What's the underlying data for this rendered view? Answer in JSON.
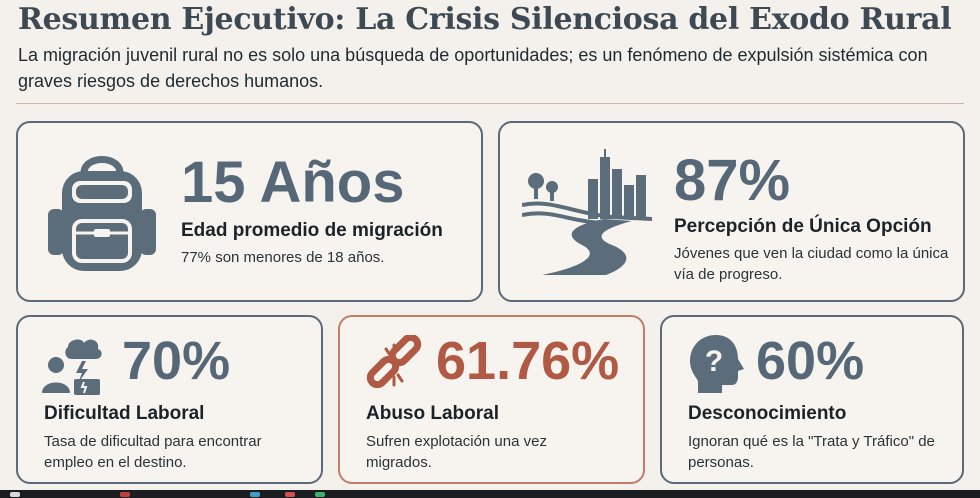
{
  "header": {
    "title": "Resumen Ejecutivo: La Crisis Silenciosa del Exodo Rural",
    "subtitle": "La migración juvenil rural no es solo una búsqueda de oportunidades; es un fenómeno de expulsión sistémica con graves riesgos de derechos humanos."
  },
  "cards": {
    "age": {
      "value": "15 Años",
      "label": "Edad promedio de migración",
      "desc": "77% son menores de 18 años.",
      "icon": "backpack-icon"
    },
    "option": {
      "value": "87%",
      "label": "Percepción de Única Opción",
      "desc": "Jóvenes que ven la ciudad como la única vía de progreso.",
      "icon": "city-road-icon"
    },
    "work": {
      "value": "70%",
      "label": "Dificultad Laboral",
      "desc": "Tasa de dificultad para encontrar empleo en el destino.",
      "icon": "worker-storm-icon"
    },
    "abuse": {
      "value": "61.76%",
      "label": "Abuso Laboral",
      "desc": "Sufren explotación una vez migrados.",
      "icon": "broken-chain-icon"
    },
    "unaware": {
      "value": "60%",
      "label": "Desconocimiento",
      "desc": "Ignoran qué es la \"Trata y Tráfico\" de personas.",
      "icon": "head-question-icon"
    }
  },
  "colors": {
    "background": "#f4f1ec",
    "slate": "#566877",
    "accent_red": "#b05a45"
  }
}
